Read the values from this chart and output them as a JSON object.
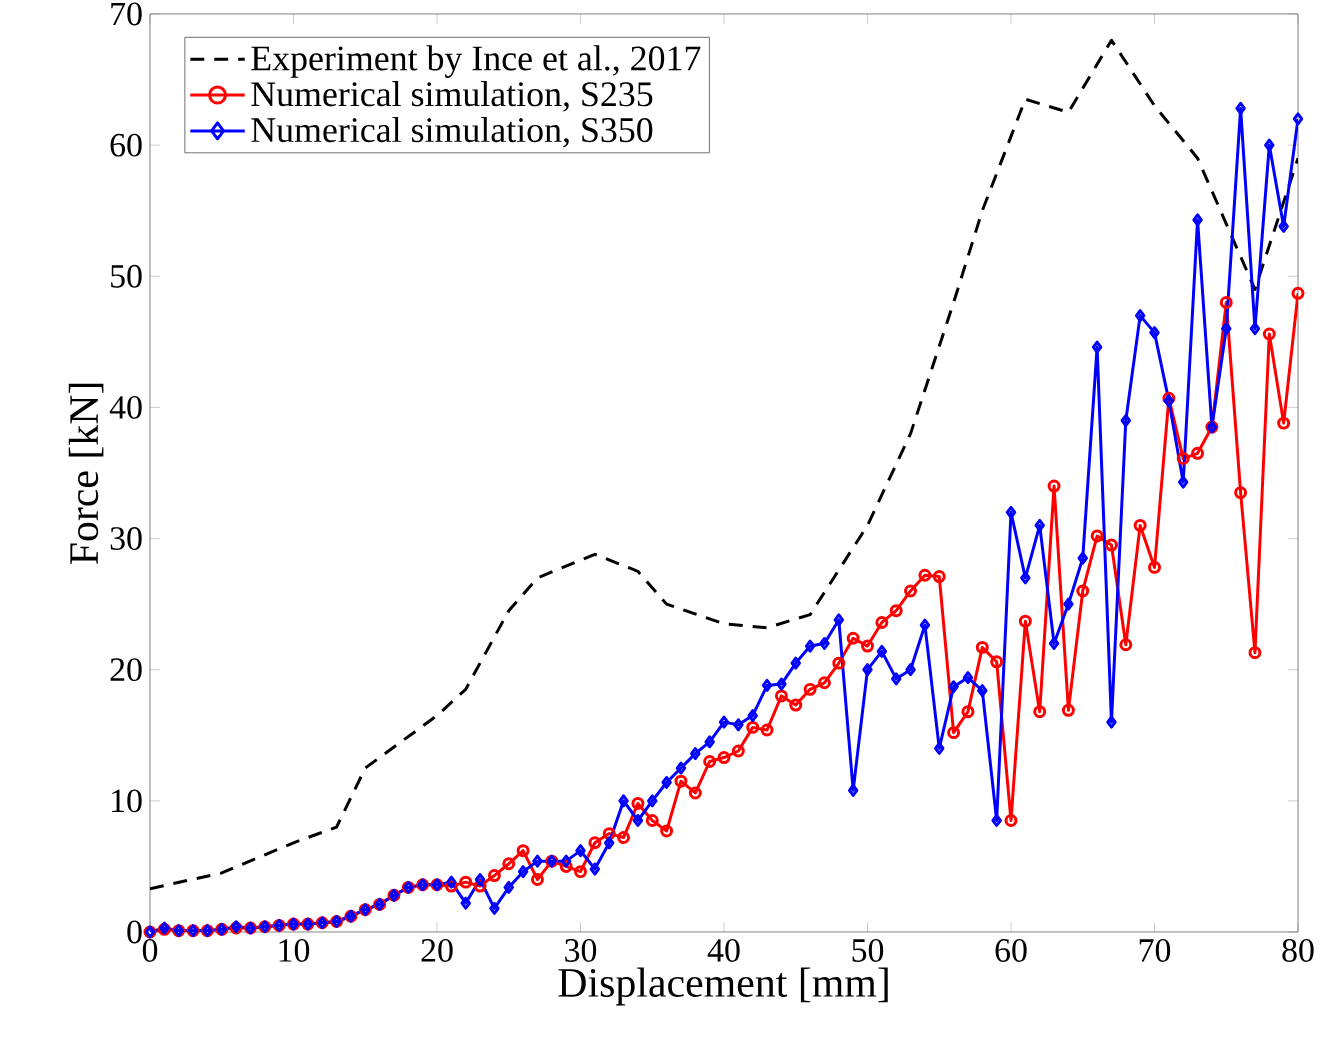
{
  "chart_data": {
    "type": "line",
    "xlabel": "Displacement [mm]",
    "ylabel": "Force [kN]",
    "xlim": [
      0,
      80
    ],
    "ylim": [
      0,
      70
    ],
    "xticks": [
      0,
      10,
      20,
      30,
      40,
      50,
      60,
      70,
      80
    ],
    "yticks": [
      0,
      10,
      20,
      30,
      40,
      50,
      60,
      70
    ],
    "grid": false,
    "legend": "top left",
    "series": [
      {
        "name": "Experiment by Ince et al., 2017",
        "color": "#000000",
        "line_style": "dashed",
        "marker": "none",
        "x": [
          0,
          5,
          10,
          13,
          15,
          20,
          22,
          25,
          27,
          31,
          34,
          36,
          40,
          43,
          46,
          50,
          53,
          56,
          58,
          61,
          64,
          67,
          70,
          73,
          75,
          77,
          80
        ],
        "values": [
          3.3,
          4.5,
          6.8,
          8,
          12.5,
          16.5,
          18.5,
          24.5,
          27,
          28.8,
          27.5,
          25,
          23.5,
          23.2,
          24.2,
          31,
          38,
          48,
          55,
          63.5,
          62.5,
          68,
          63,
          59,
          54,
          49,
          59
        ]
      },
      {
        "name": "Numerical simulation, S235",
        "color": "#ff0000",
        "line_style": "solid",
        "marker": "circle",
        "x": [
          0,
          1,
          2,
          3,
          4,
          5,
          6,
          7,
          8,
          9,
          10,
          11,
          12,
          13,
          14,
          15,
          16,
          17,
          18,
          19,
          20,
          21,
          22,
          23,
          24,
          25,
          26,
          27,
          28,
          29,
          30,
          31,
          32,
          33,
          34,
          35,
          36,
          37,
          38,
          39,
          40,
          41,
          42,
          43,
          44,
          45,
          46,
          47,
          48,
          49,
          50,
          51,
          52,
          53,
          54,
          55,
          56,
          57,
          58,
          59,
          60,
          61,
          62,
          63,
          64,
          65,
          66,
          67,
          68,
          69,
          70,
          71,
          72,
          73,
          74,
          75,
          76,
          77,
          78,
          79,
          80
        ],
        "values": [
          0,
          0.2,
          0.1,
          0.1,
          0.1,
          0.2,
          0.3,
          0.3,
          0.4,
          0.5,
          0.6,
          0.6,
          0.7,
          0.8,
          1.2,
          1.7,
          2.1,
          2.8,
          3.4,
          3.6,
          3.6,
          3.5,
          3.8,
          3.5,
          4.3,
          5.2,
          6.2,
          4,
          5.4,
          5,
          4.6,
          6.8,
          7.5,
          7.2,
          9.8,
          8.5,
          7.7,
          11.5,
          10.6,
          13,
          13.3,
          13.8,
          15.6,
          15.4,
          18,
          17.3,
          18.5,
          19,
          20.5,
          22.4,
          21.8,
          23.6,
          24.5,
          26,
          27.2,
          27.1,
          15.2,
          16.8,
          21.7,
          20.6,
          8.5,
          23.7,
          16.8,
          34,
          16.9,
          26,
          30.2,
          29.5,
          21.9,
          31,
          27.8,
          40.7,
          36.1,
          36.5,
          38.5,
          48,
          33.5,
          21.3,
          45.6,
          38.8,
          48.7
        ]
      },
      {
        "name": "Numerical simulation, S350",
        "color": "#0000ff",
        "line_style": "solid",
        "marker": "diamond",
        "x": [
          0,
          1,
          2,
          3,
          4,
          5,
          6,
          7,
          8,
          9,
          10,
          11,
          12,
          13,
          14,
          15,
          16,
          17,
          18,
          19,
          20,
          21,
          22,
          23,
          24,
          25,
          26,
          27,
          28,
          29,
          30,
          31,
          32,
          33,
          34,
          35,
          36,
          37,
          38,
          39,
          40,
          41,
          42,
          43,
          44,
          45,
          46,
          47,
          48,
          49,
          50,
          51,
          52,
          53,
          54,
          55,
          56,
          57,
          58,
          59,
          60,
          61,
          62,
          63,
          64,
          65,
          66,
          67,
          68,
          69,
          70,
          71,
          72,
          73,
          74,
          75,
          76,
          77,
          78,
          79,
          80
        ],
        "values": [
          0,
          0.3,
          0.1,
          0.1,
          0.1,
          0.2,
          0.4,
          0.3,
          0.4,
          0.5,
          0.6,
          0.6,
          0.7,
          0.8,
          1.2,
          1.7,
          2.1,
          2.8,
          3.4,
          3.6,
          3.6,
          3.8,
          2.2,
          4,
          1.8,
          3.4,
          4.6,
          5.4,
          5.4,
          5.4,
          6.2,
          4.8,
          6.8,
          10,
          8.5,
          10,
          11.4,
          12.5,
          13.6,
          14.5,
          16,
          15.8,
          16.5,
          18.8,
          18.9,
          20.5,
          21.8,
          22,
          23.8,
          10.8,
          20,
          21.4,
          19.3,
          20,
          23.4,
          14,
          18.7,
          19.4,
          18.4,
          8.5,
          32,
          27,
          31,
          22,
          25,
          28.5,
          44.6,
          16,
          39,
          47,
          45.7,
          40.5,
          34.3,
          54.3,
          38.5,
          46,
          62.8,
          46,
          60,
          53.8,
          62
        ]
      }
    ]
  }
}
